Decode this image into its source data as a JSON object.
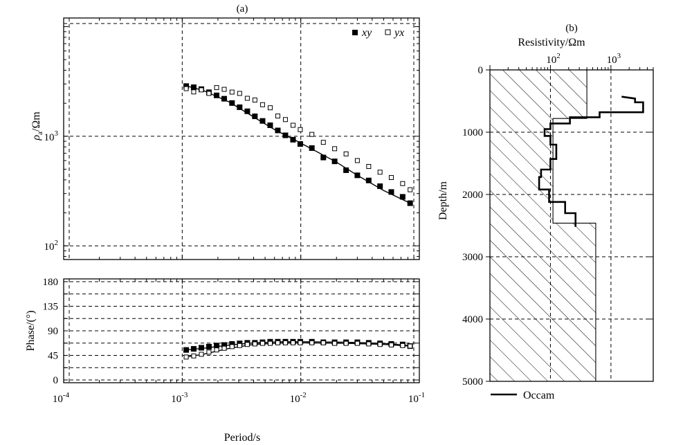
{
  "chart_data": [
    {
      "panel_label": "(a)",
      "type": "scatter",
      "x_scale": "log",
      "y_scale": "log",
      "xlim": [
        0.0001,
        0.1
      ],
      "ylim": [
        75,
        12000
      ],
      "ylabel_symbol": "ρ",
      "ylabel_subscript": "a",
      "ylabel_unit": "/Ωm",
      "y_tick_labels": [
        {
          "value": 100,
          "base": "10",
          "exp": "2"
        },
        {
          "value": 1000,
          "base": "10",
          "exp": "3"
        }
      ],
      "grid": true,
      "legend_position": "top-right",
      "series": [
        {
          "name": "xy",
          "marker": "filled-square",
          "x": [
            0.00108,
            0.00125,
            0.00145,
            0.00168,
            0.00195,
            0.00226,
            0.00263,
            0.00305,
            0.00354,
            0.0041,
            0.00476,
            0.00552,
            0.0064,
            0.00742,
            0.0086,
            0.0099,
            0.0124,
            0.0155,
            0.0193,
            0.0241,
            0.03,
            0.0374,
            0.0466,
            0.058,
            0.0723,
            0.0836
          ],
          "y": [
            2870,
            2800,
            2690,
            2520,
            2360,
            2200,
            2010,
            1840,
            1690,
            1520,
            1380,
            1260,
            1130,
            1020,
            930,
            850,
            780,
            640,
            590,
            490,
            440,
            395,
            350,
            310,
            280,
            245
          ]
        },
        {
          "name": "yx",
          "marker": "open-square",
          "x": [
            0.00108,
            0.00125,
            0.00145,
            0.00168,
            0.00195,
            0.00226,
            0.00263,
            0.00305,
            0.00354,
            0.0041,
            0.00476,
            0.00552,
            0.0064,
            0.00742,
            0.0086,
            0.0099,
            0.0124,
            0.0155,
            0.0193,
            0.0241,
            0.03,
            0.0374,
            0.0466,
            0.058,
            0.0723,
            0.0836
          ],
          "y": [
            2720,
            2540,
            2650,
            2460,
            2780,
            2680,
            2530,
            2460,
            2220,
            2140,
            1940,
            1820,
            1530,
            1420,
            1260,
            1150,
            1040,
            880,
            770,
            690,
            600,
            530,
            470,
            420,
            370,
            325
          ]
        }
      ],
      "fit_line": {
        "label_hidden": true,
        "x": [
          0.00108,
          0.0015,
          0.0025,
          0.004,
          0.006,
          0.009,
          0.012,
          0.02,
          0.03,
          0.05,
          0.0836
        ],
        "y": [
          2880,
          2620,
          2050,
          1500,
          1150,
          920,
          780,
          580,
          440,
          320,
          245
        ]
      }
    },
    {
      "type": "scatter",
      "x_scale": "log",
      "xlim": [
        0.0001,
        0.1
      ],
      "ylim": [
        -5,
        185
      ],
      "xlabel": "Period/s",
      "ylabel": "Phase/(°)",
      "y_ticks": [
        0,
        45,
        90,
        135,
        180
      ],
      "y_grid": [
        0,
        22.5,
        45,
        67.5,
        90,
        112.5,
        135,
        157.5,
        180
      ],
      "x_tick_labels": [
        {
          "value": 0.0001,
          "base": "10",
          "exp": "-4"
        },
        {
          "value": 0.001,
          "base": "10",
          "exp": "-3"
        },
        {
          "value": 0.01,
          "base": "10",
          "exp": "-2"
        },
        {
          "value": 0.1,
          "base": "10",
          "exp": "-1"
        }
      ],
      "grid": true,
      "series": [
        {
          "name": "xy",
          "marker": "filled-square",
          "x": [
            0.00108,
            0.00125,
            0.00145,
            0.00168,
            0.00195,
            0.00226,
            0.00263,
            0.00305,
            0.00354,
            0.0041,
            0.00476,
            0.00552,
            0.0064,
            0.00742,
            0.0086,
            0.0099,
            0.0124,
            0.0155,
            0.0193,
            0.0241,
            0.03,
            0.0374,
            0.0466,
            0.058,
            0.0723,
            0.0836
          ],
          "y": [
            55,
            57,
            59,
            61,
            63,
            64,
            66,
            67,
            68,
            68,
            69,
            70,
            70,
            70,
            70,
            70,
            70,
            69,
            69,
            69,
            69,
            68,
            67,
            66,
            65,
            62
          ]
        },
        {
          "name": "yx",
          "marker": "open-square",
          "x": [
            0.00108,
            0.00125,
            0.00145,
            0.00168,
            0.00195,
            0.00226,
            0.00263,
            0.00305,
            0.00354,
            0.0041,
            0.00476,
            0.00552,
            0.0064,
            0.00742,
            0.0086,
            0.0099,
            0.0124,
            0.0155,
            0.0193,
            0.0241,
            0.03,
            0.0374,
            0.0466,
            0.058,
            0.0723,
            0.0836
          ],
          "y": [
            42,
            44,
            47,
            51,
            55,
            58,
            61,
            63,
            65,
            66,
            67,
            67,
            68,
            68,
            68,
            68,
            68,
            68,
            67,
            67,
            67,
            66,
            65,
            64,
            63,
            62
          ]
        }
      ],
      "fit_lines": [
        {
          "x": [
            0.00108,
            0.0015,
            0.0025,
            0.004,
            0.007,
            0.012,
            0.025,
            0.05,
            0.0836
          ],
          "y": [
            55,
            58,
            64,
            68,
            70,
            70,
            69,
            67,
            63
          ]
        },
        {
          "x": [
            0.00108,
            0.0015,
            0.0025,
            0.004,
            0.007,
            0.012,
            0.025,
            0.05,
            0.0836
          ],
          "y": [
            42,
            47,
            58,
            65,
            68,
            68,
            67,
            65,
            62
          ]
        }
      ]
    },
    {
      "panel_label": "(b)",
      "type": "line",
      "x_scale": "log",
      "xlim": [
        10,
        5000
      ],
      "ylim": [
        0,
        5000
      ],
      "y_inverted": true,
      "xlabel": "Resistivity/Ωm",
      "ylabel": "Depth/m",
      "x_tick_labels": [
        {
          "value": 100,
          "base": "10",
          "exp": "2"
        },
        {
          "value": 1000,
          "base": "10",
          "exp": "3"
        }
      ],
      "y_ticks": [
        0,
        1000,
        2000,
        3000,
        4000,
        5000
      ],
      "grid": true,
      "legend_position": "bottom-left",
      "true_model_hatched": [
        [
          400,
          0
        ],
        [
          400,
          780
        ],
        [
          110,
          780
        ],
        [
          110,
          2460
        ],
        [
          560,
          2460
        ],
        [
          560,
          5000
        ]
      ],
      "series": [
        {
          "name": "Occam",
          "steps": [
            [
              1500,
              430
            ],
            [
              2500,
              460
            ],
            [
              2500,
              520
            ],
            [
              3400,
              520
            ],
            [
              3400,
              680
            ],
            [
              2500,
              680
            ],
            [
              1800,
              680
            ],
            [
              650,
              680
            ],
            [
              650,
              760
            ],
            [
              210,
              760
            ],
            [
              210,
              860
            ],
            [
              100,
              860
            ],
            [
              100,
              950
            ],
            [
              80,
              950
            ],
            [
              80,
              1060
            ],
            [
              100,
              1060
            ],
            [
              100,
              1200
            ],
            [
              125,
              1200
            ],
            [
              125,
              1430
            ],
            [
              100,
              1430
            ],
            [
              100,
              1600
            ],
            [
              70,
              1600
            ],
            [
              70,
              1720
            ],
            [
              65,
              1720
            ],
            [
              65,
              1920
            ],
            [
              95,
              1920
            ],
            [
              95,
              2120
            ],
            [
              175,
              2120
            ],
            [
              175,
              2300
            ],
            [
              260,
              2300
            ],
            [
              260,
              2520
            ]
          ]
        }
      ]
    }
  ]
}
